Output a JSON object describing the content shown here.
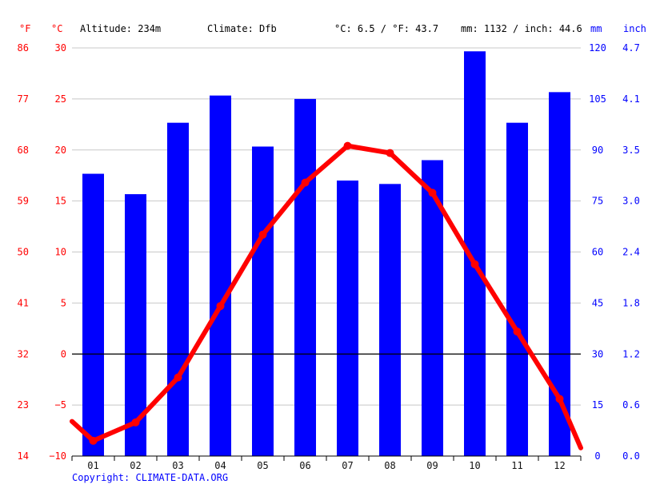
{
  "header": {
    "altitude": "Altitude: 234m",
    "climate": "Climate: Dfb",
    "temp_avg": "°C: 6.5 / °F: 43.7",
    "precip_total": "mm: 1132 / inch: 44.6",
    "unit_f": "°F",
    "unit_c": "°C",
    "unit_mm": "mm",
    "unit_inch": "inch"
  },
  "copyright": "Copyright: CLIMATE-DATA.ORG",
  "colors": {
    "temperature": "#ff0000",
    "precipitation": "#0000ff",
    "zero_line": "#000000",
    "grid": "#c8c8c8"
  },
  "chart_data": {
    "type": "bar",
    "categories": [
      "01",
      "02",
      "03",
      "04",
      "05",
      "06",
      "07",
      "08",
      "09",
      "10",
      "11",
      "12"
    ],
    "series": [
      {
        "type": "bar",
        "axis": "right",
        "values": [
          83,
          77,
          98,
          106,
          91,
          105,
          81,
          80,
          87,
          119,
          98,
          107
        ]
      },
      {
        "type": "line",
        "axis": "left",
        "values": [
          -8.5,
          -6.7,
          -2.3,
          4.7,
          11.7,
          16.8,
          20.4,
          19.7,
          15.8,
          8.8,
          2.2,
          -4.4
        ],
        "edge_start": -6.6,
        "edge_end": -9.2
      }
    ],
    "left_axis_c": {
      "ylim": [
        -10,
        30
      ],
      "ticks": [
        "30",
        "25",
        "20",
        "15",
        "10",
        "5",
        "0",
        "−5",
        "−10"
      ]
    },
    "left_axis_f": {
      "ticks": [
        "86",
        "77",
        "68",
        "59",
        "50",
        "41",
        "32",
        "23",
        "14"
      ]
    },
    "right_axis_mm": {
      "ylim": [
        0,
        120
      ],
      "ticks": [
        "120",
        "105",
        "90",
        "75",
        "60",
        "45",
        "30",
        "15",
        "0"
      ]
    },
    "right_axis_inch": {
      "ticks": [
        "4.7",
        "4.1",
        "3.5",
        "3.0",
        "2.4",
        "1.8",
        "1.2",
        "0.6",
        "0.0"
      ]
    },
    "grid": true
  }
}
